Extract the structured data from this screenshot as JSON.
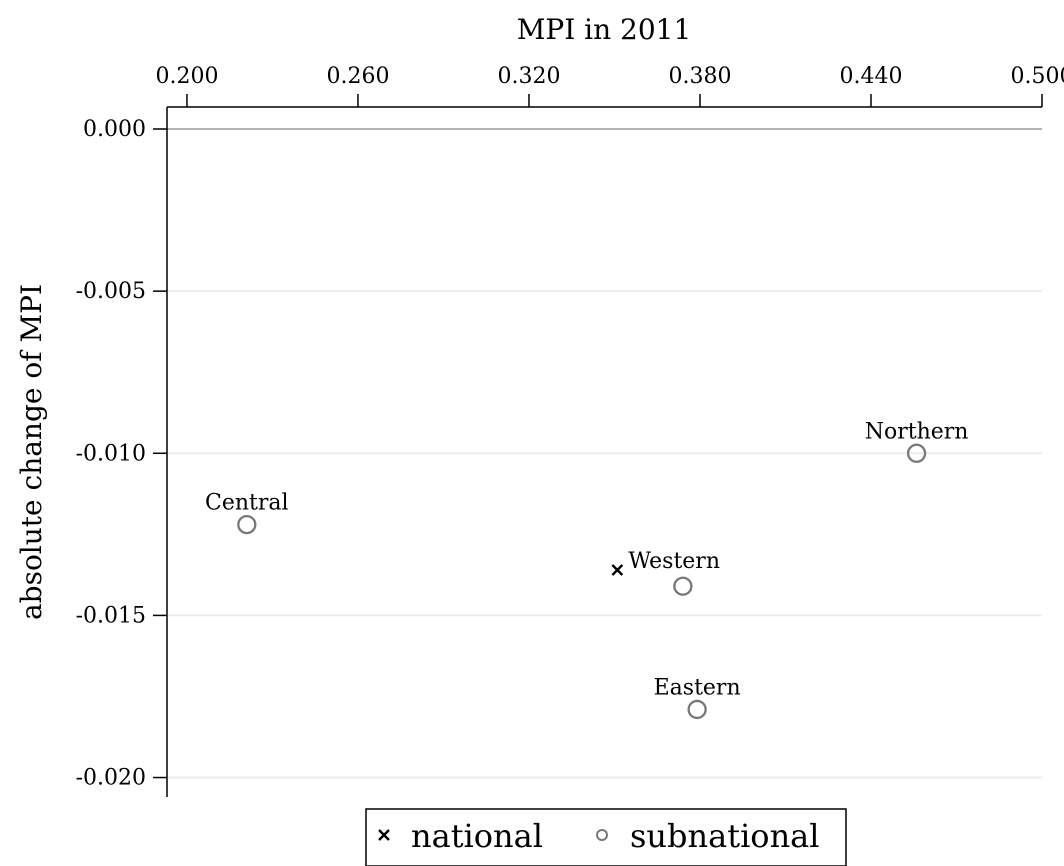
{
  "chart_data": {
    "type": "scatter",
    "title": "",
    "xlabel": "MPI in 2011",
    "ylabel": "absolute change of MPI",
    "x_axis_position": "top",
    "xlim": [
      0.193,
      0.5
    ],
    "ylim": [
      -0.0206,
      0.0
    ],
    "x_ticks": [
      0.2,
      0.26,
      0.32,
      0.38,
      0.44,
      0.5
    ],
    "x_tick_labels": [
      "0.200",
      "0.260",
      "0.320",
      "0.380",
      "0.440",
      "0.500"
    ],
    "y_ticks": [
      0.0,
      -0.005,
      -0.01,
      -0.015,
      -0.02
    ],
    "y_tick_labels": [
      "0.000",
      "-0.005",
      "-0.010",
      "-0.015",
      "-0.020"
    ],
    "grid": "horizontal",
    "reference_line_y": 0.0,
    "legend": {
      "placement": "bottom",
      "entries": [
        {
          "label": "national",
          "marker": "cross"
        },
        {
          "label": "subnational",
          "marker": "circle"
        }
      ]
    },
    "series": [
      {
        "name": "national",
        "marker": "cross",
        "color": "#000000",
        "points": [
          {
            "label": "Western",
            "x": 0.351,
            "y": -0.0136
          }
        ]
      },
      {
        "name": "subnational",
        "marker": "circle",
        "color": "#777777",
        "points": [
          {
            "label": "Central",
            "x": 0.221,
            "y": -0.0122
          },
          {
            "label": "",
            "x": 0.374,
            "y": -0.0141
          },
          {
            "label": "Eastern",
            "x": 0.379,
            "y": -0.0179
          },
          {
            "label": "Northern",
            "x": 0.456,
            "y": -0.01
          }
        ]
      }
    ]
  }
}
